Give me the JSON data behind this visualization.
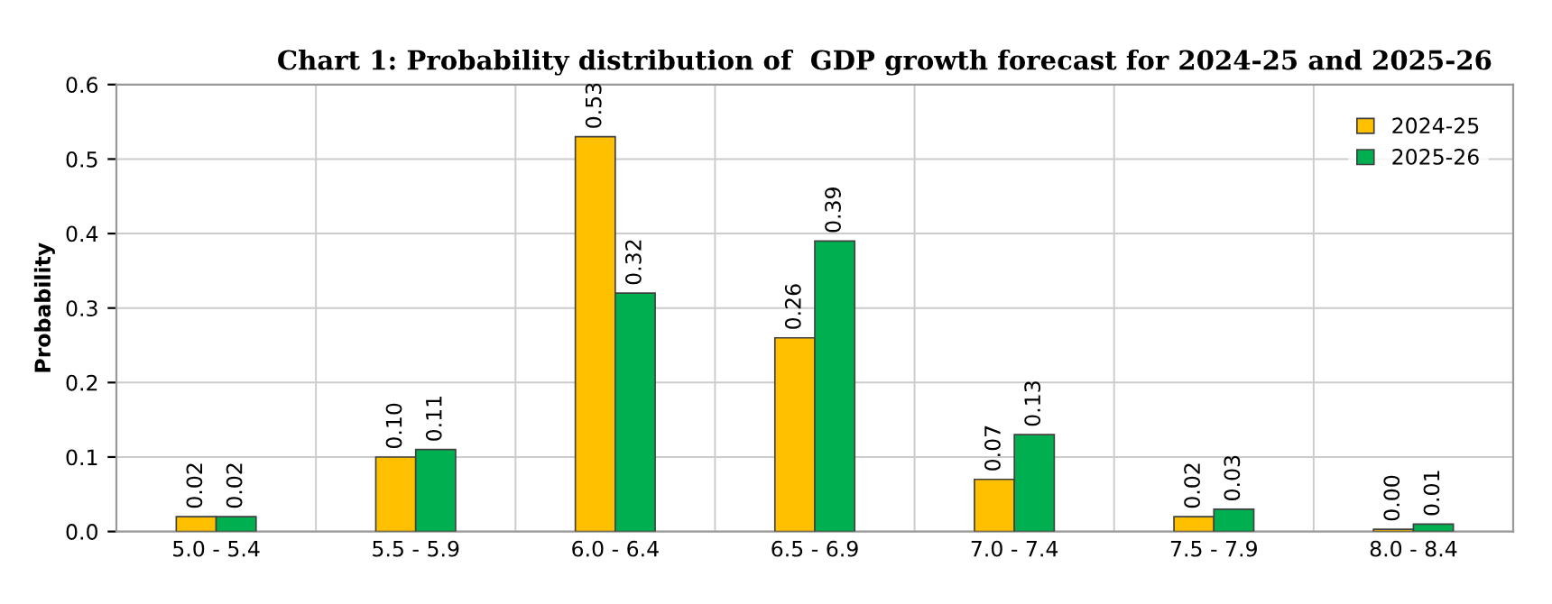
{
  "chart_data": {
    "type": "bar",
    "title": "Chart 1: Probability distribution of  GDP growth forecast for 2024-25 and 2025-26",
    "ylabel": "Probability",
    "categories": [
      "5.0 - 5.4",
      "5.5 - 5.9",
      "6.0 - 6.4",
      "6.5 - 6.9",
      "7.0 - 7.4",
      "7.5 - 7.9",
      "8.0 - 8.4"
    ],
    "series": [
      {
        "name": "2024-25",
        "color": "#ffc000",
        "values": [
          0.02,
          0.1,
          0.53,
          0.26,
          0.07,
          0.02,
          0.003
        ],
        "value_labels": [
          "0.02",
          "0.10",
          "0.53",
          "0.26",
          "0.07",
          "0.02",
          "0.00"
        ]
      },
      {
        "name": "2025-26",
        "color": "#00b050",
        "values": [
          0.02,
          0.11,
          0.32,
          0.39,
          0.13,
          0.03,
          0.01
        ],
        "value_labels": [
          "0.02",
          "0.11",
          "0.32",
          "0.39",
          "0.13",
          "0.03",
          "0.01"
        ]
      }
    ],
    "ylim": [
      0,
      0.6
    ],
    "yticks": [
      {
        "value": 0,
        "label": "0.0"
      },
      0.1,
      0.2,
      0.3,
      0.4,
      0.5,
      0.6
    ],
    "grid": true,
    "legend": "top right"
  }
}
